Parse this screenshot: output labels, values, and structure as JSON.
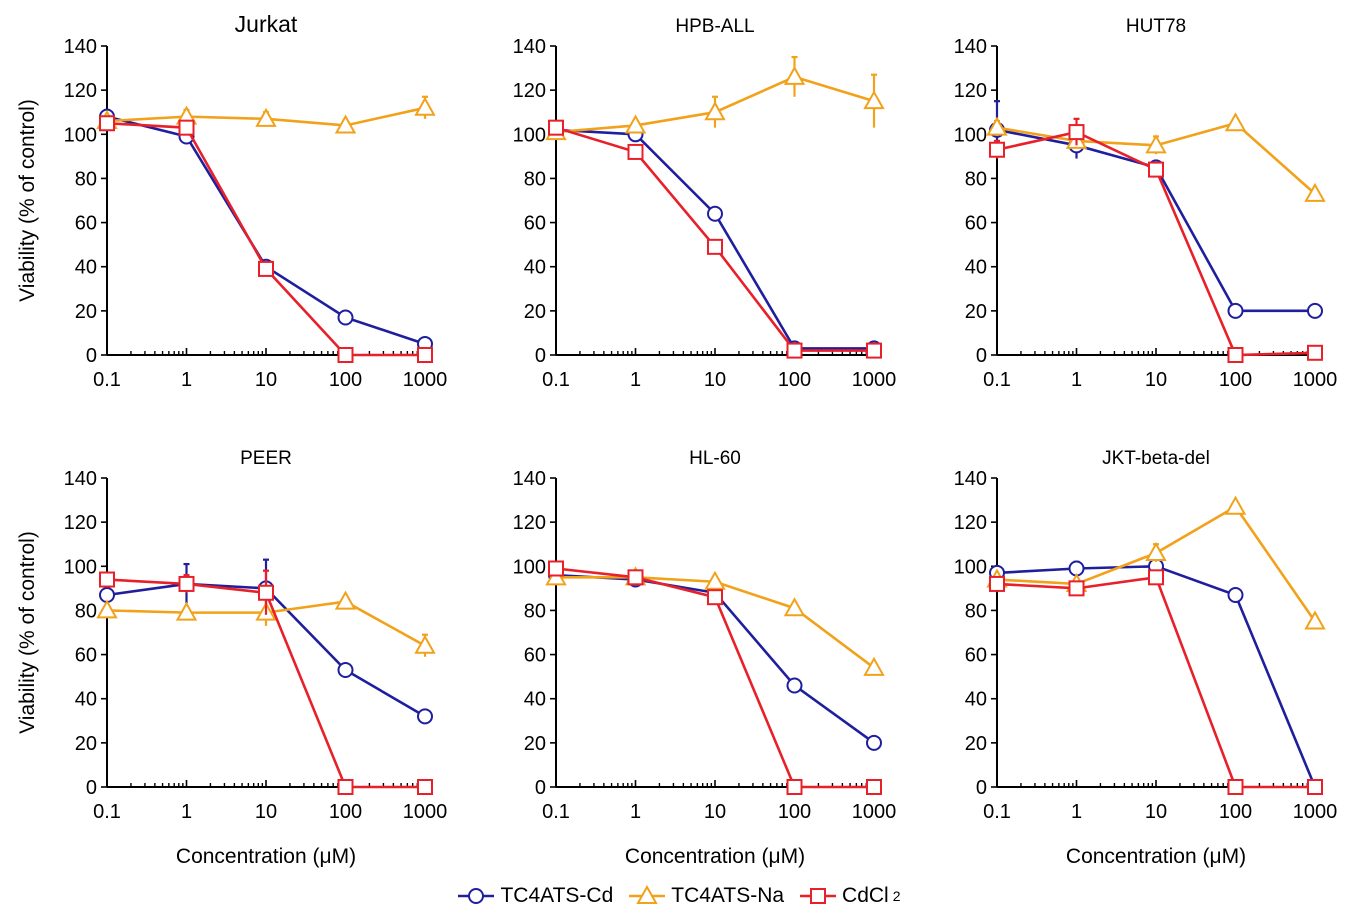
{
  "chart_data": {
    "type": "line",
    "x": [
      0.1,
      1,
      10,
      100,
      1000
    ],
    "xscale": "log",
    "ylim": [
      0,
      140
    ],
    "y_ticks": [
      "0",
      "20",
      "40",
      "60",
      "80",
      "100",
      "120",
      "140"
    ],
    "x_ticks": [
      "0.1",
      "1",
      "10",
      "100",
      "1000"
    ],
    "ylabel": "Viability (% of control)",
    "xlabel": "Concentration (μM)",
    "colors": {
      "TC4ATS-Cd": "#1f1f9e",
      "TC4ATS-Na": "#f2a21a",
      "CdCl2": "#e8202a"
    },
    "legend": [
      {
        "key": "TC4ATS-Cd",
        "label": "TC4ATS-Cd",
        "marker": "circle"
      },
      {
        "key": "TC4ATS-Na",
        "label": "TC4ATS-Na",
        "marker": "triangle"
      },
      {
        "key": "CdCl2",
        "label": "CdCl",
        "sub": "2",
        "marker": "square"
      }
    ],
    "panels": [
      {
        "title": "Jurkat",
        "series": [
          {
            "key": "TC4ATS-Cd",
            "values": [
              108,
              99,
              40,
              17,
              5
            ],
            "errors": [
              3,
              2,
              2,
              2,
              1
            ]
          },
          {
            "key": "TC4ATS-Na",
            "values": [
              106,
              108,
              107,
              104,
              112
            ],
            "errors": [
              2,
              3,
              3,
              2,
              5
            ]
          },
          {
            "key": "CdCl2",
            "values": [
              105,
              103,
              39,
              0,
              0
            ],
            "errors": [
              2,
              3,
              2,
              0,
              0
            ]
          }
        ]
      },
      {
        "title": "HPB-ALL",
        "series": [
          {
            "key": "TC4ATS-Cd",
            "values": [
              102,
              100,
              64,
              3,
              3
            ],
            "errors": [
              2,
              2,
              2,
              1,
              1
            ]
          },
          {
            "key": "TC4ATS-Na",
            "values": [
              101,
              104,
              110,
              126,
              115
            ],
            "errors": [
              2,
              2,
              7,
              9,
              12
            ]
          },
          {
            "key": "CdCl2",
            "values": [
              103,
              92,
              49,
              2,
              2
            ],
            "errors": [
              2,
              2,
              2,
              1,
              1
            ]
          }
        ]
      },
      {
        "title": "HUT78",
        "series": [
          {
            "key": "TC4ATS-Cd",
            "values": [
              102,
              95,
              85,
              20,
              20
            ],
            "errors": [
              13,
              6,
              2,
              1,
              1
            ]
          },
          {
            "key": "TC4ATS-Na",
            "values": [
              103,
              97,
              95,
              105,
              73
            ],
            "errors": [
              3,
              3,
              4,
              2,
              2
            ]
          },
          {
            "key": "CdCl2",
            "values": [
              93,
              101,
              84,
              0,
              1
            ],
            "errors": [
              4,
              6,
              2,
              0,
              0
            ]
          }
        ]
      },
      {
        "title": "PEER",
        "series": [
          {
            "key": "TC4ATS-Cd",
            "values": [
              87,
              92,
              90,
              53,
              32
            ],
            "errors": [
              2,
              9,
              13,
              1,
              1
            ]
          },
          {
            "key": "TC4ATS-Na",
            "values": [
              80,
              79,
              79,
              84,
              64
            ],
            "errors": [
              2,
              2,
              6,
              2,
              5
            ]
          },
          {
            "key": "CdCl2",
            "values": [
              94,
              92,
              88,
              0,
              0
            ],
            "errors": [
              2,
              4,
              10,
              0,
              0
            ]
          }
        ]
      },
      {
        "title": "HL-60",
        "series": [
          {
            "key": "TC4ATS-Cd",
            "values": [
              96,
              94,
              88,
              46,
              20
            ],
            "errors": [
              2,
              2,
              2,
              1,
              1
            ]
          },
          {
            "key": "TC4ATS-Na",
            "values": [
              95,
              95,
              93,
              81,
              54
            ],
            "errors": [
              2,
              2,
              2,
              2,
              2
            ]
          },
          {
            "key": "CdCl2",
            "values": [
              99,
              95,
              86,
              0,
              0
            ],
            "errors": [
              2,
              2,
              2,
              0,
              0
            ]
          }
        ]
      },
      {
        "title": "JKT-beta-del",
        "series": [
          {
            "key": "TC4ATS-Cd",
            "values": [
              97,
              99,
              100,
              87,
              0
            ],
            "errors": [
              2,
              3,
              2,
              2,
              0
            ]
          },
          {
            "key": "TC4ATS-Na",
            "values": [
              94,
              92,
              106,
              127,
              75
            ],
            "errors": [
              2,
              2,
              4,
              2,
              2
            ]
          },
          {
            "key": "CdCl2",
            "values": [
              92,
              90,
              95,
              0,
              0
            ],
            "errors": [
              2,
              2,
              2,
              0,
              0
            ]
          }
        ]
      }
    ]
  }
}
